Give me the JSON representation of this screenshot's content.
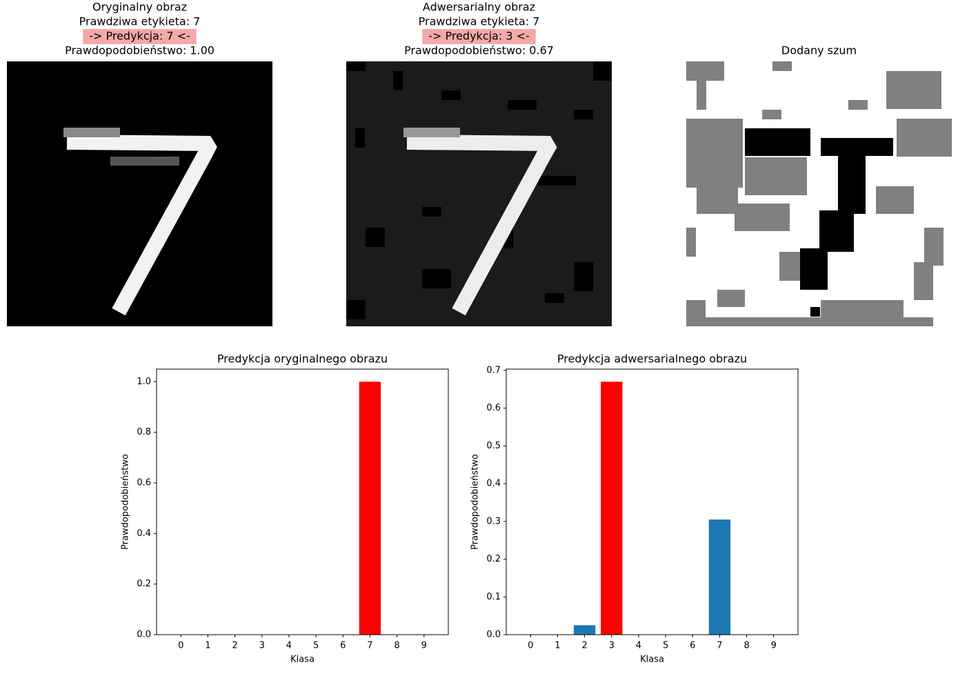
{
  "chart_data": [
    {
      "type": "image",
      "title": "Oryginalny obraz",
      "true_label_text": "Prawdziwa etykieta: 7",
      "prediction_text": "-> Predykcja: 7 <-",
      "probability_text": "Prawdopodobieństwo: 1.00",
      "highlight_color": "#f4a9a8"
    },
    {
      "type": "image",
      "title": "Adwersarialny obraz",
      "true_label_text": "Prawdziwa etykieta: 7",
      "prediction_text": "-> Predykcja: 3 <-",
      "probability_text": "Prawdopodobieństwo: 0.67",
      "highlight_color": "#f4a9a8"
    },
    {
      "type": "image",
      "title": "Dodany szum"
    },
    {
      "type": "bar",
      "title": "Predykcja oryginalnego obrazu",
      "x_label": "Klasa",
      "y_label": "Prawdopodobieństwo",
      "categories": [
        "0",
        "1",
        "2",
        "3",
        "4",
        "5",
        "6",
        "7",
        "8",
        "9"
      ],
      "values": [
        0,
        0,
        0,
        0,
        0,
        0,
        0,
        1.0,
        0,
        0
      ],
      "colors": [
        "#1f77b4",
        "#1f77b4",
        "#1f77b4",
        "#1f77b4",
        "#1f77b4",
        "#1f77b4",
        "#1f77b4",
        "#ff0000",
        "#1f77b4",
        "#1f77b4"
      ],
      "ylim": [
        0,
        1.05
      ],
      "yticks": [
        {
          "value": 0,
          "label": "0.0"
        },
        0.2,
        0.4,
        0.6,
        0.8,
        {
          "value": 1,
          "label": "1.0"
        }
      ],
      "grid": false
    },
    {
      "type": "bar",
      "title": "Predykcja adwersarialnego obrazu",
      "x_label": "Klasa",
      "y_label": "Prawdopodobieństwo",
      "categories": [
        "0",
        "1",
        "2",
        "3",
        "4",
        "5",
        "6",
        "7",
        "8",
        "9"
      ],
      "values": [
        0,
        0,
        0.025,
        0.67,
        0,
        0,
        0,
        0.305,
        0,
        0
      ],
      "colors": [
        "#1f77b4",
        "#1f77b4",
        "#1f77b4",
        "#ff0000",
        "#1f77b4",
        "#1f77b4",
        "#1f77b4",
        "#1f77b4",
        "#1f77b4",
        "#1f77b4"
      ],
      "ylim": [
        0,
        0.7035
      ],
      "yticks": [
        {
          "value": 0,
          "label": "0.0"
        },
        0.1,
        0.2,
        0.3,
        0.4,
        0.5,
        0.6,
        0.7
      ],
      "grid": false
    }
  ]
}
